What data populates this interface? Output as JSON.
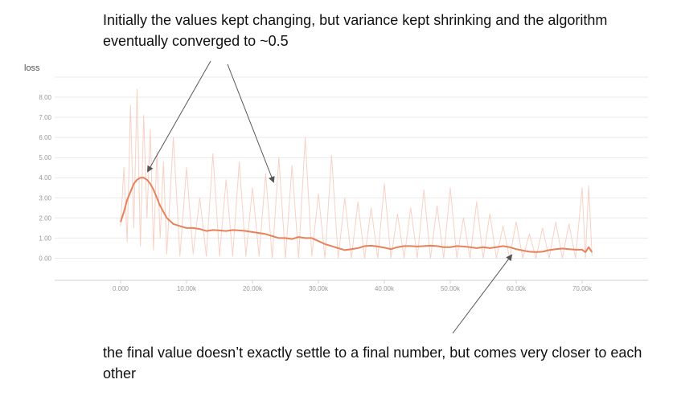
{
  "annotations": {
    "top": "Initially the values kept changing, but variance kept shrinking and the algorithm eventually converged to ~0.5",
    "bottom": "the final value doesn’t exactly settle to a final number, but comes very closer to each other"
  },
  "colors": {
    "smoothed_line": "#e8805a",
    "raw_line": "#f6c6b6",
    "grid": "#e9e9e9",
    "arrow": "#555555"
  },
  "chart_data": {
    "type": "line",
    "title": "loss",
    "xlabel": "",
    "ylabel": "",
    "xlim": [
      -10000,
      80000
    ],
    "ylim": [
      -1.1,
      9.0
    ],
    "x_ticks": [
      0,
      10000,
      20000,
      30000,
      40000,
      50000,
      60000,
      70000
    ],
    "x_tick_labels": [
      "0.000",
      "10.00k",
      "20.00k",
      "30.00k",
      "40.00k",
      "50.00k",
      "60.00k",
      "70.00k"
    ],
    "y_ticks": [
      0,
      1,
      2,
      3,
      4,
      5,
      6,
      7,
      8
    ],
    "y_tick_labels": [
      "0.00",
      "1.00",
      "2.00",
      "3.00",
      "4.00",
      "5.00",
      "6.00",
      "7.00",
      "8.00"
    ],
    "grid": true,
    "series": [
      {
        "kind": "smoothed",
        "x": [
          0,
          500,
          1000,
          1500,
          2000,
          2500,
          3000,
          3500,
          4000,
          4500,
          5000,
          5500,
          6000,
          6500,
          7000,
          8000,
          9000,
          10000,
          11000,
          12000,
          13000,
          14000,
          15000,
          16000,
          17000,
          18000,
          19000,
          20000,
          21000,
          22000,
          23000,
          24000,
          25000,
          26000,
          27000,
          28000,
          29000,
          30000,
          31000,
          32000,
          33000,
          34000,
          35000,
          36000,
          37000,
          38000,
          39000,
          40000,
          41000,
          42000,
          43000,
          44000,
          45000,
          46000,
          47000,
          48000,
          49000,
          50000,
          51000,
          52000,
          53000,
          54000,
          55000,
          56000,
          57000,
          58000,
          59000,
          60000,
          61000,
          62000,
          63000,
          64000,
          65000,
          66000,
          67000,
          68000,
          69000,
          70000,
          70500,
          71000,
          71500
        ],
        "y": [
          1.8,
          2.3,
          2.9,
          3.3,
          3.7,
          3.9,
          4.0,
          4.0,
          3.9,
          3.7,
          3.4,
          3.0,
          2.6,
          2.3,
          2.0,
          1.7,
          1.6,
          1.5,
          1.5,
          1.45,
          1.35,
          1.4,
          1.38,
          1.35,
          1.4,
          1.38,
          1.35,
          1.3,
          1.25,
          1.2,
          1.1,
          1.0,
          1.0,
          0.95,
          1.05,
          1.0,
          1.0,
          0.85,
          0.7,
          0.6,
          0.5,
          0.4,
          0.45,
          0.5,
          0.6,
          0.62,
          0.58,
          0.52,
          0.45,
          0.55,
          0.6,
          0.6,
          0.58,
          0.6,
          0.62,
          0.6,
          0.55,
          0.55,
          0.6,
          0.58,
          0.55,
          0.5,
          0.55,
          0.5,
          0.55,
          0.6,
          0.55,
          0.45,
          0.38,
          0.32,
          0.3,
          0.32,
          0.4,
          0.45,
          0.48,
          0.45,
          0.42,
          0.42,
          0.3,
          0.55,
          0.3
        ]
      },
      {
        "kind": "raw",
        "x": [
          0,
          500,
          1000,
          1500,
          2000,
          2500,
          3000,
          3500,
          4000,
          4500,
          5000,
          5500,
          6000,
          6500,
          7000,
          8000,
          9000,
          10000,
          11000,
          12000,
          13000,
          14000,
          15000,
          16000,
          17000,
          18000,
          19000,
          20000,
          21000,
          22000,
          23000,
          24000,
          25000,
          26000,
          27000,
          28000,
          29000,
          30000,
          31000,
          32000,
          33000,
          34000,
          35000,
          36000,
          37000,
          38000,
          39000,
          40000,
          41000,
          42000,
          43000,
          44000,
          45000,
          46000,
          47000,
          48000,
          49000,
          50000,
          51000,
          52000,
          53000,
          54000,
          55000,
          56000,
          57000,
          58000,
          59000,
          60000,
          61000,
          62000,
          63000,
          64000,
          65000,
          66000,
          67000,
          68000,
          69000,
          70000,
          70500,
          71000,
          71500
        ],
        "y": [
          1.6,
          4.5,
          0.8,
          7.6,
          1.5,
          8.4,
          0.6,
          7.1,
          2.0,
          6.4,
          0.4,
          5.3,
          1.0,
          4.8,
          0.2,
          6.0,
          0.1,
          4.5,
          0.2,
          3.0,
          0.1,
          5.2,
          0.1,
          3.9,
          0.1,
          4.8,
          0.1,
          3.5,
          0.1,
          4.2,
          0.0,
          5.0,
          0.0,
          4.6,
          0.0,
          6.0,
          0.1,
          3.2,
          0.0,
          5.1,
          0.0,
          3.0,
          0.0,
          2.8,
          0.0,
          2.5,
          0.0,
          3.7,
          0.0,
          2.2,
          0.0,
          2.5,
          0.0,
          3.4,
          0.0,
          2.6,
          0.0,
          3.5,
          0.0,
          2.0,
          0.0,
          2.8,
          0.0,
          2.2,
          0.0,
          1.6,
          0.0,
          1.8,
          0.0,
          1.2,
          0.0,
          1.5,
          0.0,
          1.8,
          0.0,
          1.7,
          0.0,
          3.5,
          0.0,
          3.6,
          0.1
        ]
      }
    ]
  }
}
